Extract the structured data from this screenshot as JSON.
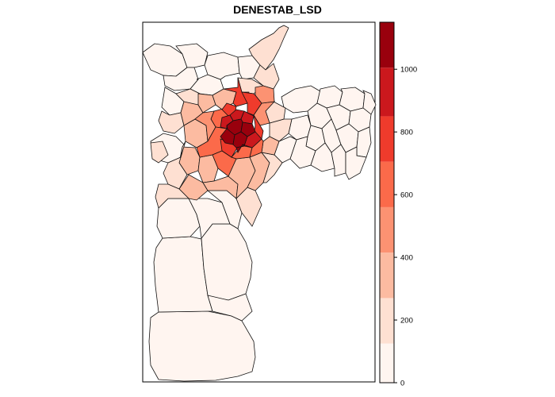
{
  "map": {
    "title": "DENESTAB_LSD",
    "variable": "DENESTAB_LSD"
  },
  "legend": {
    "palette": [
      "#fff5f0",
      "#fee0d2",
      "#fcbba1",
      "#fc9272",
      "#fb6a4a",
      "#ef3b2c",
      "#cb181d",
      "#99000d"
    ],
    "breaks": [
      0,
      125,
      270,
      415,
      560,
      705,
      850,
      1005,
      1150
    ],
    "ticks": [
      0,
      200,
      400,
      600,
      800,
      1000
    ],
    "range": [
      0,
      1150
    ]
  }
}
